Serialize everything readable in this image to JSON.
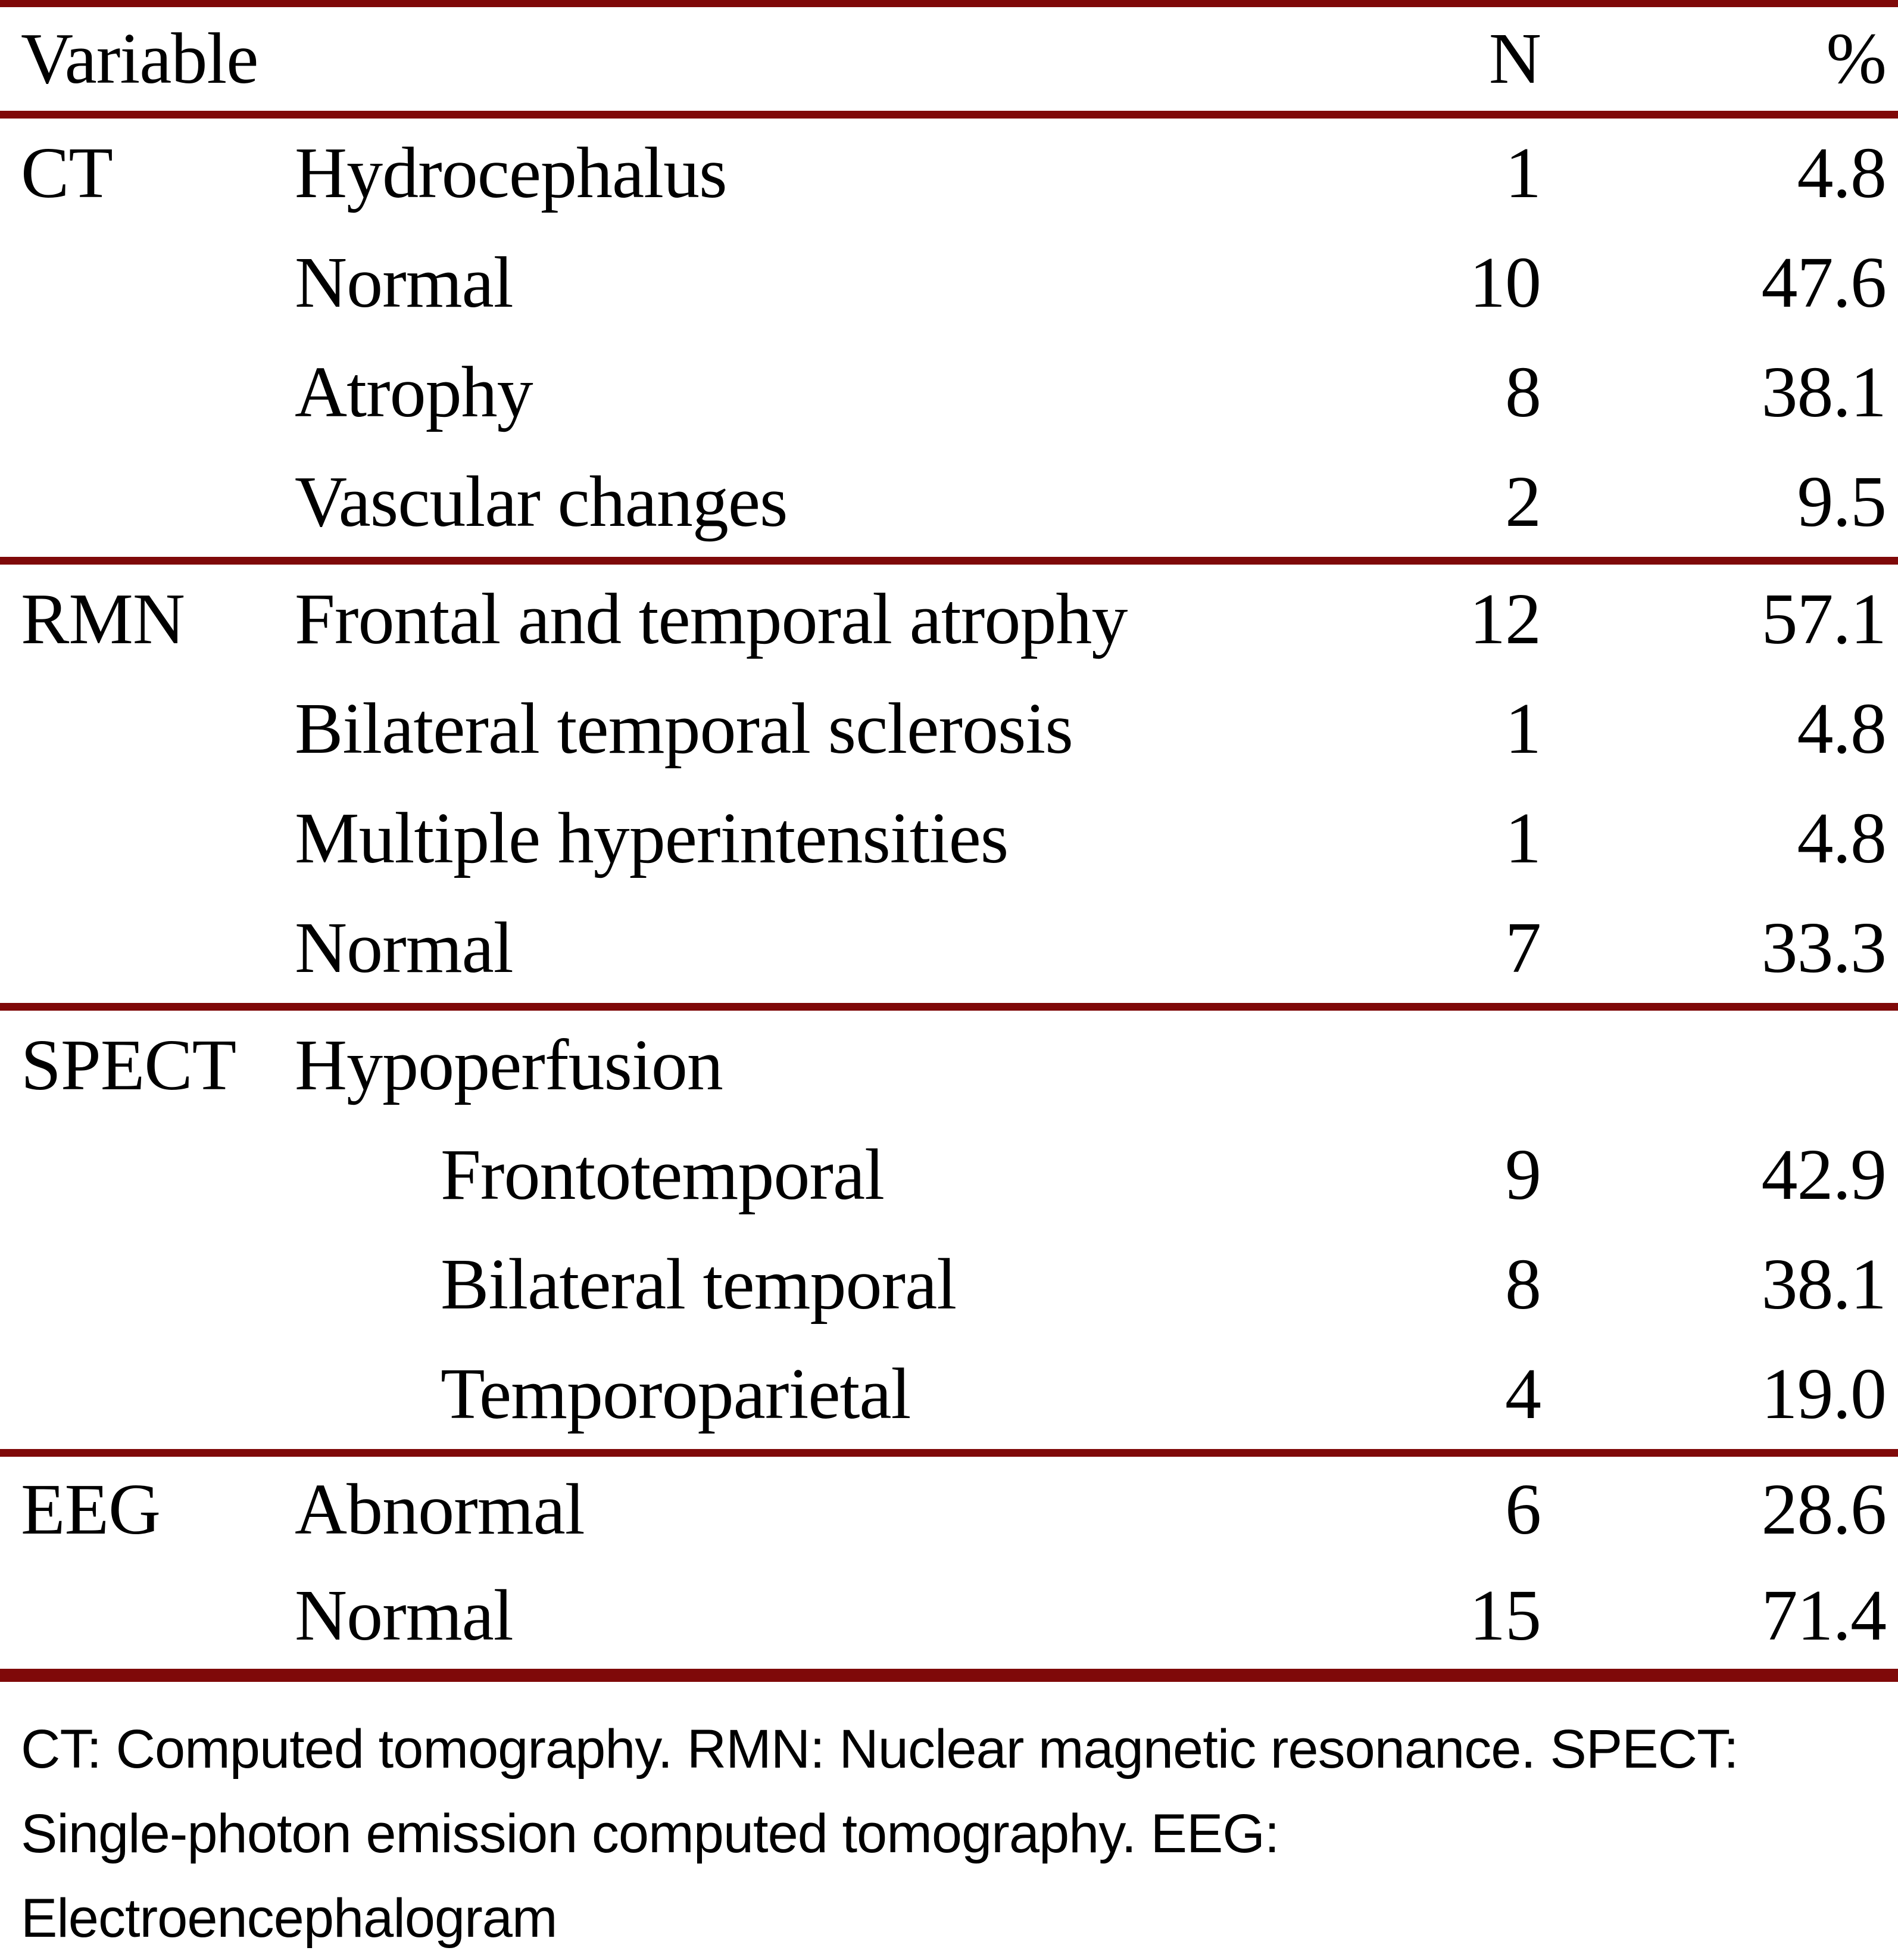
{
  "colors": {
    "rule_maroon": "#7f0909",
    "text": "#000000",
    "background": "#ffffff"
  },
  "table": {
    "header": {
      "variable_label": "Variable",
      "n_label": "N",
      "percent_label": "%"
    },
    "sections": [
      {
        "group": "CT",
        "rows": [
          {
            "label": "Hydrocephalus",
            "indent": 0,
            "n": "1",
            "pct": "4.8"
          },
          {
            "label": "Normal",
            "indent": 0,
            "n": "10",
            "pct": "47.6"
          },
          {
            "label": "Atrophy",
            "indent": 0,
            "n": "8",
            "pct": "38.1"
          },
          {
            "label": "Vascular changes",
            "indent": 0,
            "n": "2",
            "pct": "9.5"
          }
        ]
      },
      {
        "group": "RMN",
        "rows": [
          {
            "label": "Frontal and temporal atrophy",
            "indent": 0,
            "n": "12",
            "pct": "57.1"
          },
          {
            "label": "Bilateral temporal sclerosis",
            "indent": 0,
            "n": "1",
            "pct": "4.8"
          },
          {
            "label": "Multiple hyperintensities",
            "indent": 0,
            "n": "1",
            "pct": "4.8"
          },
          {
            "label": "Normal",
            "indent": 0,
            "n": "7",
            "pct": "33.3"
          }
        ]
      },
      {
        "group": "SPECT",
        "rows": [
          {
            "label": "Hypoperfusion",
            "indent": 0,
            "n": "",
            "pct": ""
          },
          {
            "label": "Frontotemporal",
            "indent": 1,
            "n": "9",
            "pct": "42.9"
          },
          {
            "label": "Bilateral temporal",
            "indent": 1,
            "n": "8",
            "pct": "38.1"
          },
          {
            "label": "Temporoparietal",
            "indent": 1,
            "n": "4",
            "pct": "19.0"
          }
        ]
      },
      {
        "group": "EEG",
        "rows": [
          {
            "label": "Abnormal",
            "indent": 0,
            "n": "6",
            "pct": "28.6"
          },
          {
            "label": "Normal",
            "indent": 0,
            "n": "15",
            "pct": "71.4"
          }
        ]
      }
    ],
    "footnote_lines": [
      "CT: Computed tomography. RMN: Nuclear magnetic resonance. SPECT:",
      "Single-photon emission computed tomography. EEG:",
      "Electroencephalogram"
    ]
  }
}
